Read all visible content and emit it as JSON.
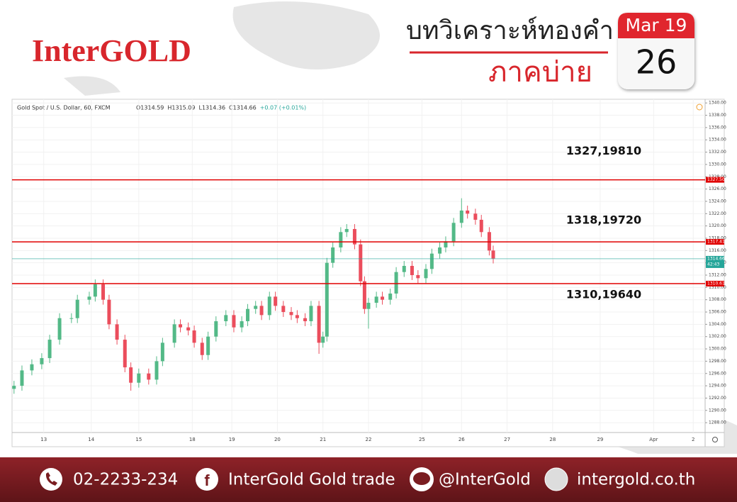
{
  "header": {
    "logo": "InterGOLD",
    "title": "บทวิเคราะห์ทองคำ",
    "subtitle": "ภาคบ่าย",
    "date_month": "Mar 19",
    "date_day": "26"
  },
  "chart_data": {
    "type": "candlestick",
    "symbol": "Gold Spot / U.S. Dollar, 60, FXCM",
    "ohlc_legend": [
      "O1314.59",
      "H1315.09",
      "L1314.36",
      "C1314.66",
      "+0.07 (+0.01%)"
    ],
    "up_color": "#53b987",
    "down_color": "#eb4d5c",
    "x": [
      1,
      5,
      10,
      15,
      19,
      24,
      30,
      33,
      39,
      42,
      46,
      49,
      53,
      57,
      60,
      64,
      69,
      73,
      76,
      82,
      85,
      89,
      92,
      96,
      99,
      103,
      108,
      112,
      116,
      119,
      123,
      126,
      130,
      133,
      137,
      141,
      144,
      148,
      151,
      155,
      157,
      159,
      162,
      166,
      169,
      173,
      176,
      178,
      180,
      184,
      187,
      191,
      194,
      198,
      202,
      205,
      209,
      212,
      216,
      219,
      223,
      227,
      230,
      234,
      237,
      241,
      243
    ],
    "open": [
      1293.5,
      1294,
      1296.5,
      1297.5,
      1298.5,
      1301.5,
      1305,
      1305,
      1308,
      1308.5,
      1310.5,
      1308,
      1304,
      1301.5,
      1297,
      1294.5,
      1296,
      1295,
      1298,
      1301,
      1304,
      1303.5,
      1303,
      1301,
      1299,
      1302,
      1304.5,
      1305.5,
      1303.5,
      1304.5,
      1306.5,
      1307,
      1305.5,
      1308.5,
      1307,
      1306,
      1305.5,
      1305,
      1304.5,
      1307,
      1301,
      1302,
      1314,
      1316.5,
      1319,
      1319.5,
      1317,
      1311,
      1306.5,
      1307.5,
      1308.5,
      1308,
      1309,
      1312.5,
      1313.5,
      1312,
      1311.5,
      1313,
      1315.5,
      1316.5,
      1317.5,
      1320.5,
      1322.5,
      1322,
      1321,
      1319,
      1316
    ],
    "high": [
      1294.8,
      1297.3,
      1298.3,
      1299.3,
      1302.3,
      1305.8,
      1305.8,
      1308.8,
      1309.3,
      1311.3,
      1311.3,
      1308.8,
      1304.8,
      1302.3,
      1297.8,
      1296.8,
      1296.8,
      1298.8,
      1301.8,
      1304.8,
      1304.8,
      1304.3,
      1303.8,
      1301.8,
      1302.8,
      1305.3,
      1306.3,
      1306.3,
      1305.3,
      1307.3,
      1307.8,
      1307.8,
      1309.3,
      1309.3,
      1307.8,
      1306.8,
      1306.3,
      1305.8,
      1307.8,
      1307.8,
      1302.8,
      1314.8,
      1317.3,
      1319.8,
      1320.3,
      1320.3,
      1317.8,
      1311.8,
      1308.3,
      1309.3,
      1309.3,
      1309.8,
      1313.3,
      1314.3,
      1314.3,
      1312.8,
      1313.8,
      1316.3,
      1317.3,
      1318.3,
      1321.3,
      1324.5,
      1323.3,
      1322.8,
      1321.8,
      1319.8,
      1316.8
    ],
    "low": [
      1292.7,
      1293.2,
      1295.7,
      1296.7,
      1297.7,
      1300.7,
      1304.2,
      1304.2,
      1307.2,
      1307.7,
      1307.2,
      1303.2,
      1300.7,
      1296.2,
      1293.2,
      1293.7,
      1294.2,
      1294.2,
      1297.2,
      1300.2,
      1302.7,
      1302.2,
      1300.2,
      1298.2,
      1298.2,
      1301.2,
      1303.7,
      1302.7,
      1302.7,
      1303.7,
      1305.7,
      1304.7,
      1304.7,
      1306.2,
      1305.2,
      1304.7,
      1304.2,
      1303.7,
      1303.7,
      1299.2,
      1300.2,
      1301.2,
      1313.2,
      1315.7,
      1318.2,
      1316.2,
      1310.2,
      1305.7,
      1303.3,
      1306.7,
      1307.2,
      1307.2,
      1308.2,
      1311.7,
      1311.2,
      1310.7,
      1310.7,
      1312.2,
      1314.7,
      1315.7,
      1316.7,
      1319.7,
      1321.2,
      1320.2,
      1318.2,
      1315.2,
      1313.9
    ],
    "close": [
      1294,
      1296.5,
      1297.5,
      1298.5,
      1301.5,
      1305,
      1305,
      1308,
      1308.5,
      1310.5,
      1308,
      1304,
      1301.5,
      1297,
      1294.5,
      1296,
      1295,
      1298,
      1301,
      1304,
      1303.5,
      1303,
      1301,
      1299,
      1302,
      1304.5,
      1305.5,
      1303.5,
      1304.5,
      1306.5,
      1307,
      1305.5,
      1308.5,
      1307,
      1306,
      1305.5,
      1305,
      1304.5,
      1307,
      1301,
      1302,
      1314,
      1316.5,
      1319,
      1319.5,
      1317,
      1311,
      1306.5,
      1307.5,
      1308.5,
      1308,
      1309,
      1312.5,
      1313.5,
      1312,
      1311.5,
      1313,
      1315.5,
      1316.5,
      1317.5,
      1320.5,
      1322.5,
      1322,
      1321,
      1319,
      1316,
      1314.7
    ],
    "xlim": [
      0,
      350
    ],
    "xticks": [
      {
        "value": 16,
        "label": "13"
      },
      {
        "value": 40,
        "label": "14"
      },
      {
        "value": 64,
        "label": "15"
      },
      {
        "value": 91,
        "label": "18"
      },
      {
        "value": 111,
        "label": "19"
      },
      {
        "value": 134,
        "label": "20"
      },
      {
        "value": 157,
        "label": "21"
      },
      {
        "value": 180,
        "label": "22"
      },
      {
        "value": 207,
        "label": "25"
      },
      {
        "value": 227,
        "label": "26"
      },
      {
        "value": 250,
        "label": "27"
      },
      {
        "value": 273,
        "label": "28"
      },
      {
        "value": 297,
        "label": "29"
      },
      {
        "value": 324,
        "label": "Apr"
      },
      {
        "value": 344,
        "label": "2"
      }
    ],
    "ylim": [
      1286.4,
      1340.6
    ],
    "yticks": [
      {
        "value": 1288,
        "label": "1288.00"
      },
      {
        "value": 1290,
        "label": "1290.00"
      },
      {
        "value": 1292,
        "label": "1292.00"
      },
      {
        "value": 1294,
        "label": "1294.00"
      },
      {
        "value": 1296,
        "label": "1296.00"
      },
      {
        "value": 1298,
        "label": "1298.00"
      },
      {
        "value": 1300,
        "label": "1300.00"
      },
      {
        "value": 1302,
        "label": "1302.00"
      },
      {
        "value": 1304,
        "label": "1304.00"
      },
      {
        "value": 1306,
        "label": "1306.00"
      },
      {
        "value": 1308,
        "label": "1308.00"
      },
      {
        "value": 1310,
        "label": "1310.00"
      },
      {
        "value": 1312,
        "label": "1312.00"
      },
      {
        "value": 1314,
        "label": "1314.00"
      },
      {
        "value": 1316,
        "label": "1316.00"
      },
      {
        "value": 1318,
        "label": "1318.00"
      },
      {
        "value": 1320,
        "label": "1320.00"
      },
      {
        "value": 1322,
        "label": "1322.00"
      },
      {
        "value": 1324,
        "label": "1324.00"
      },
      {
        "value": 1326,
        "label": "1326.00"
      },
      {
        "value": 1328,
        "label": "1328.00"
      },
      {
        "value": 1330,
        "label": "1330.00"
      },
      {
        "value": 1332,
        "label": "1332.00"
      },
      {
        "value": 1334,
        "label": "1334.00"
      },
      {
        "value": 1336,
        "label": "1336.00"
      },
      {
        "value": 1338,
        "label": "1338.00"
      },
      {
        "value": 1340,
        "label": "1340.00"
      }
    ],
    "grid": true,
    "levels": [
      {
        "value": 1327.5,
        "label": "1327.50",
        "annotation": "1327,19810",
        "color": "#e00000"
      },
      {
        "value": 1317.41,
        "label": "1317.41",
        "annotation": "1318,19720",
        "color": "#e00000"
      },
      {
        "value": 1310.61,
        "label": "1310.61",
        "annotation": "1310,19640",
        "color": "#e00000"
      }
    ],
    "current_price": {
      "value": 1314.66,
      "label": "1314.66",
      "color": "#26a69a"
    },
    "countdown": "42:43"
  },
  "footer": {
    "phone": "02-2233-234",
    "facebook": "InterGold Gold trade",
    "line": "@InterGold",
    "website": "intergold.co.th"
  }
}
